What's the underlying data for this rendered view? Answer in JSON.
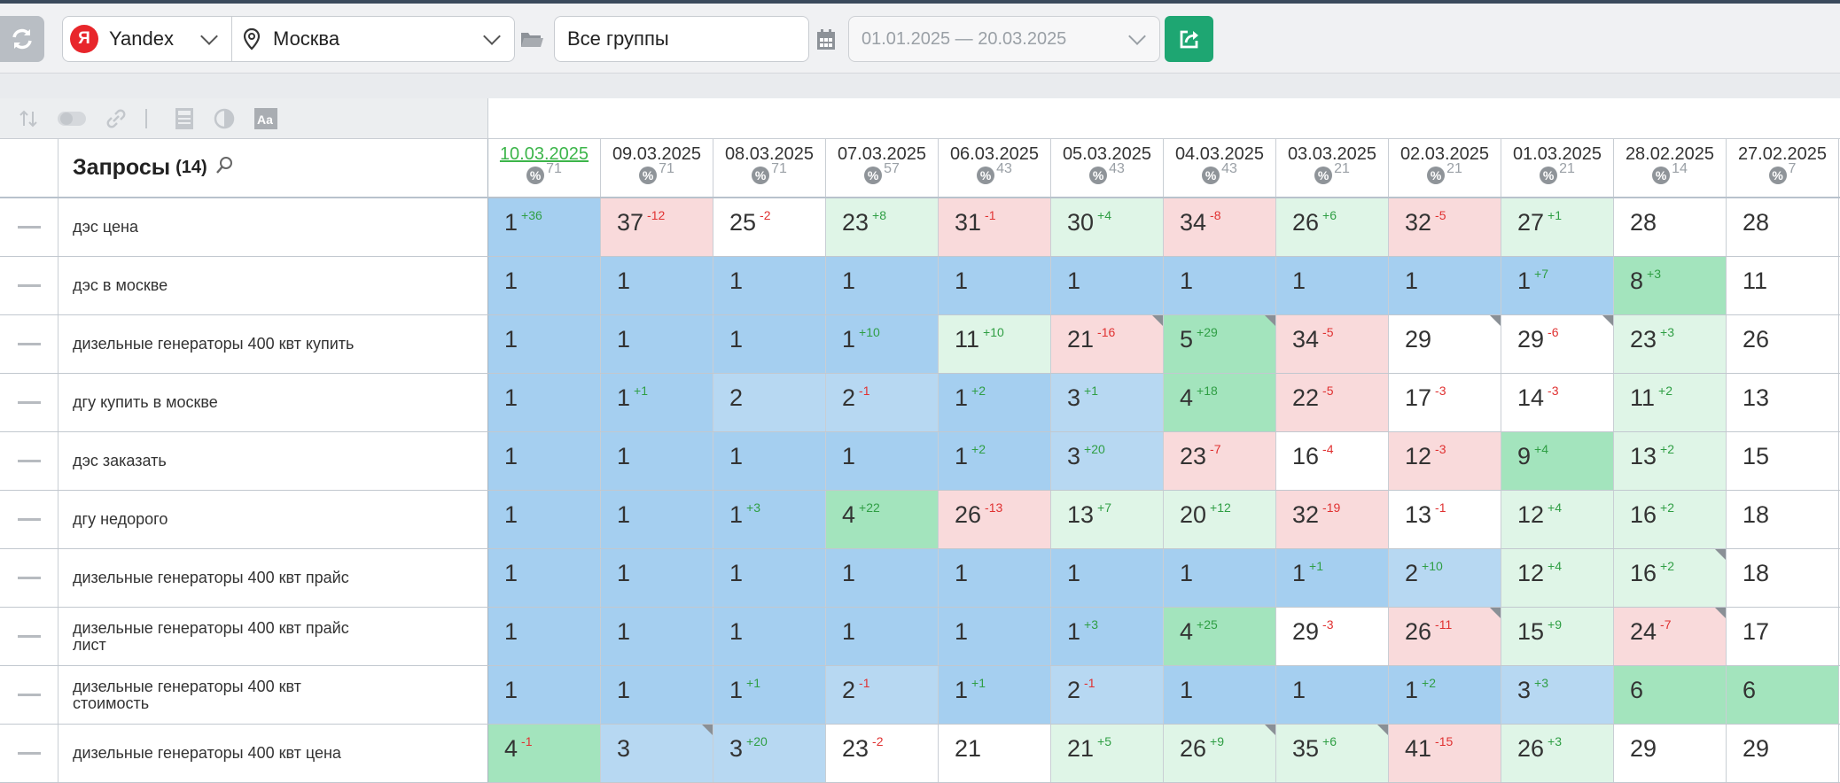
{
  "toolbar": {
    "engine": "Yandex",
    "engine_logo": "Я",
    "region": "Москва",
    "groups": "Все группы",
    "date_range": "01.01.2025 — 20.03.2025"
  },
  "table": {
    "title": "Запросы",
    "count": "(14)",
    "dates": [
      {
        "label": "10.03.2025",
        "count": "71",
        "active": true
      },
      {
        "label": "09.03.2025",
        "count": "71"
      },
      {
        "label": "08.03.2025",
        "count": "71"
      },
      {
        "label": "07.03.2025",
        "count": "57"
      },
      {
        "label": "06.03.2025",
        "count": "43"
      },
      {
        "label": "05.03.2025",
        "count": "43"
      },
      {
        "label": "04.03.2025",
        "count": "43"
      },
      {
        "label": "03.03.2025",
        "count": "21"
      },
      {
        "label": "02.03.2025",
        "count": "21"
      },
      {
        "label": "01.03.2025",
        "count": "21"
      },
      {
        "label": "28.02.2025",
        "count": "14"
      },
      {
        "label": "27.02.2025",
        "count": "7"
      }
    ],
    "rows": [
      {
        "query": "дэс цена",
        "cells": [
          {
            "v": "1",
            "d": "+36",
            "c": "b"
          },
          {
            "v": "37",
            "d": "-12",
            "c": "r"
          },
          {
            "v": "25",
            "d": "-2",
            "c": "w"
          },
          {
            "v": "23",
            "d": "+8",
            "c": "lg"
          },
          {
            "v": "31",
            "d": "-1",
            "c": "r"
          },
          {
            "v": "30",
            "d": "+4",
            "c": "lg"
          },
          {
            "v": "34",
            "d": "-8",
            "c": "r"
          },
          {
            "v": "26",
            "d": "+6",
            "c": "lg"
          },
          {
            "v": "32",
            "d": "-5",
            "c": "r"
          },
          {
            "v": "27",
            "d": "+1",
            "c": "lg"
          },
          {
            "v": "28",
            "c": "w"
          },
          {
            "v": "28",
            "c": "w"
          }
        ]
      },
      {
        "query": "дэс в москве",
        "cells": [
          {
            "v": "1",
            "c": "b"
          },
          {
            "v": "1",
            "c": "b"
          },
          {
            "v": "1",
            "c": "b"
          },
          {
            "v": "1",
            "c": "b"
          },
          {
            "v": "1",
            "c": "b"
          },
          {
            "v": "1",
            "c": "b"
          },
          {
            "v": "1",
            "c": "b"
          },
          {
            "v": "1",
            "c": "b"
          },
          {
            "v": "1",
            "c": "b"
          },
          {
            "v": "1",
            "d": "+7",
            "c": "b"
          },
          {
            "v": "8",
            "d": "+3",
            "c": "g"
          },
          {
            "v": "11",
            "c": "w"
          }
        ]
      },
      {
        "query": "дизельные генераторы 400 квт купить",
        "cells": [
          {
            "v": "1",
            "c": "b"
          },
          {
            "v": "1",
            "c": "b"
          },
          {
            "v": "1",
            "c": "b"
          },
          {
            "v": "1",
            "d": "+10",
            "c": "b"
          },
          {
            "v": "11",
            "d": "+10",
            "c": "lg"
          },
          {
            "v": "21",
            "d": "-16",
            "c": "r",
            "corner": true
          },
          {
            "v": "5",
            "d": "+29",
            "c": "g",
            "corner": true
          },
          {
            "v": "34",
            "d": "-5",
            "c": "r"
          },
          {
            "v": "29",
            "c": "w",
            "corner": true
          },
          {
            "v": "29",
            "d": "-6",
            "c": "w",
            "corner": true
          },
          {
            "v": "23",
            "d": "+3",
            "c": "lg"
          },
          {
            "v": "26",
            "c": "w"
          }
        ]
      },
      {
        "query": "дгу купить в москве",
        "cells": [
          {
            "v": "1",
            "c": "b"
          },
          {
            "v": "1",
            "d": "+1",
            "c": "b"
          },
          {
            "v": "2",
            "c": "lb"
          },
          {
            "v": "2",
            "d": "-1",
            "c": "lb"
          },
          {
            "v": "1",
            "d": "+2",
            "c": "b"
          },
          {
            "v": "3",
            "d": "+1",
            "c": "lb"
          },
          {
            "v": "4",
            "d": "+18",
            "c": "g"
          },
          {
            "v": "22",
            "d": "-5",
            "c": "r"
          },
          {
            "v": "17",
            "d": "-3",
            "c": "w"
          },
          {
            "v": "14",
            "d": "-3",
            "c": "w"
          },
          {
            "v": "11",
            "d": "+2",
            "c": "lg"
          },
          {
            "v": "13",
            "c": "w"
          }
        ]
      },
      {
        "query": "дэс заказать",
        "cells": [
          {
            "v": "1",
            "c": "b"
          },
          {
            "v": "1",
            "c": "b"
          },
          {
            "v": "1",
            "c": "b"
          },
          {
            "v": "1",
            "c": "b"
          },
          {
            "v": "1",
            "d": "+2",
            "c": "b"
          },
          {
            "v": "3",
            "d": "+20",
            "c": "lb"
          },
          {
            "v": "23",
            "d": "-7",
            "c": "r"
          },
          {
            "v": "16",
            "d": "-4",
            "c": "w"
          },
          {
            "v": "12",
            "d": "-3",
            "c": "r"
          },
          {
            "v": "9",
            "d": "+4",
            "c": "g"
          },
          {
            "v": "13",
            "d": "+2",
            "c": "lg"
          },
          {
            "v": "15",
            "c": "w"
          }
        ]
      },
      {
        "query": "дгу недорого",
        "cells": [
          {
            "v": "1",
            "c": "b"
          },
          {
            "v": "1",
            "c": "b"
          },
          {
            "v": "1",
            "d": "+3",
            "c": "b"
          },
          {
            "v": "4",
            "d": "+22",
            "c": "g"
          },
          {
            "v": "26",
            "d": "-13",
            "c": "r"
          },
          {
            "v": "13",
            "d": "+7",
            "c": "lg"
          },
          {
            "v": "20",
            "d": "+12",
            "c": "lg"
          },
          {
            "v": "32",
            "d": "-19",
            "c": "r"
          },
          {
            "v": "13",
            "d": "-1",
            "c": "w"
          },
          {
            "v": "12",
            "d": "+4",
            "c": "lg"
          },
          {
            "v": "16",
            "d": "+2",
            "c": "lg"
          },
          {
            "v": "18",
            "c": "w"
          }
        ]
      },
      {
        "query": "дизельные генераторы 400 квт прайс",
        "cells": [
          {
            "v": "1",
            "c": "b"
          },
          {
            "v": "1",
            "c": "b"
          },
          {
            "v": "1",
            "c": "b"
          },
          {
            "v": "1",
            "c": "b"
          },
          {
            "v": "1",
            "c": "b"
          },
          {
            "v": "1",
            "c": "b"
          },
          {
            "v": "1",
            "c": "b"
          },
          {
            "v": "1",
            "d": "+1",
            "c": "b"
          },
          {
            "v": "2",
            "d": "+10",
            "c": "lb"
          },
          {
            "v": "12",
            "d": "+4",
            "c": "lg"
          },
          {
            "v": "16",
            "d": "+2",
            "c": "lg",
            "corner": true
          },
          {
            "v": "18",
            "c": "w"
          }
        ]
      },
      {
        "query": "дизельные генераторы 400 квт прайс лист",
        "cells": [
          {
            "v": "1",
            "c": "b"
          },
          {
            "v": "1",
            "c": "b"
          },
          {
            "v": "1",
            "c": "b"
          },
          {
            "v": "1",
            "c": "b"
          },
          {
            "v": "1",
            "c": "b"
          },
          {
            "v": "1",
            "d": "+3",
            "c": "b"
          },
          {
            "v": "4",
            "d": "+25",
            "c": "g"
          },
          {
            "v": "29",
            "d": "-3",
            "c": "w"
          },
          {
            "v": "26",
            "d": "-11",
            "c": "r",
            "corner": true
          },
          {
            "v": "15",
            "d": "+9",
            "c": "lg"
          },
          {
            "v": "24",
            "d": "-7",
            "c": "r",
            "corner": true
          },
          {
            "v": "17",
            "c": "w"
          }
        ]
      },
      {
        "query": "дизельные генераторы 400 квт стоимость",
        "cells": [
          {
            "v": "1",
            "c": "b"
          },
          {
            "v": "1",
            "c": "b"
          },
          {
            "v": "1",
            "d": "+1",
            "c": "b"
          },
          {
            "v": "2",
            "d": "-1",
            "c": "lb"
          },
          {
            "v": "1",
            "d": "+1",
            "c": "b"
          },
          {
            "v": "2",
            "d": "-1",
            "c": "lb"
          },
          {
            "v": "1",
            "c": "b"
          },
          {
            "v": "1",
            "c": "b"
          },
          {
            "v": "1",
            "d": "+2",
            "c": "b"
          },
          {
            "v": "3",
            "d": "+3",
            "c": "lb"
          },
          {
            "v": "6",
            "c": "g"
          },
          {
            "v": "6",
            "c": "g"
          }
        ]
      },
      {
        "query": "дизельные генераторы 400 квт цена",
        "cells": [
          {
            "v": "4",
            "d": "-1",
            "c": "g"
          },
          {
            "v": "3",
            "c": "lb",
            "corner": true
          },
          {
            "v": "3",
            "d": "+20",
            "c": "lb"
          },
          {
            "v": "23",
            "d": "-2",
            "c": "w"
          },
          {
            "v": "21",
            "c": "w"
          },
          {
            "v": "21",
            "d": "+5",
            "c": "lg"
          },
          {
            "v": "26",
            "d": "+9",
            "c": "lg",
            "corner": true
          },
          {
            "v": "35",
            "d": "+6",
            "c": "lg",
            "corner": true
          },
          {
            "v": "41",
            "d": "-15",
            "c": "r"
          },
          {
            "v": "26",
            "d": "+3",
            "c": "lg"
          },
          {
            "v": "29",
            "c": "w"
          },
          {
            "v": "29",
            "c": "w"
          }
        ]
      }
    ]
  },
  "colors": {
    "b": "#a5cff0",
    "lb": "#b7d8f2",
    "g": "#a3e4bd",
    "lg": "#dff5e7",
    "r": "#f9dadb",
    "w": "#ffffff",
    "accent_green": "#1ea672",
    "up": "#2f9e44",
    "down": "#e03131",
    "active_date": "#3cb54a"
  },
  "icons": [
    "refresh-icon",
    "chevron-down-icon",
    "location-pin-icon",
    "folder-icon",
    "calendar-icon",
    "export-icon",
    "sort-icon",
    "toggle-icon",
    "link-icon",
    "calculator-icon",
    "contrast-icon",
    "font-size-icon",
    "search-icon",
    "percent-icon"
  ]
}
